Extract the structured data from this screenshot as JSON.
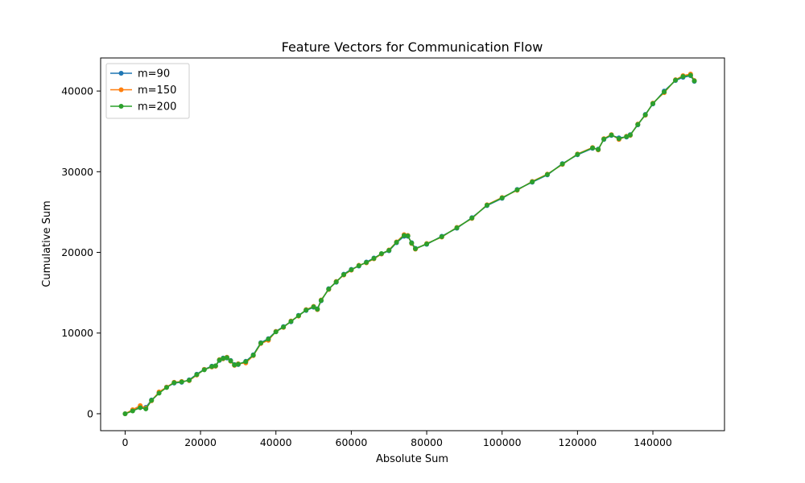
{
  "chart_data": {
    "type": "line",
    "title": "Feature Vectors for Communication Flow",
    "xlabel": "Absolute Sum",
    "ylabel": "Cumulative Sum",
    "xlim": [
      -6500,
      159000
    ],
    "ylim": [
      -2100,
      44100
    ],
    "xticks": [
      0,
      20000,
      40000,
      60000,
      80000,
      100000,
      120000,
      140000
    ],
    "yticks": [
      0,
      10000,
      20000,
      30000,
      40000
    ],
    "grid": false,
    "legend_position": "top-left",
    "series": [
      {
        "name": "m=90",
        "color": "#1f77b4",
        "marker": "circle",
        "x": [
          0,
          2000,
          4000,
          5500,
          7000,
          9000,
          11000,
          13000,
          15000,
          17000,
          19000,
          21000,
          23000,
          24000,
          25000,
          26000,
          27000,
          28000,
          29000,
          30000,
          32000,
          34000,
          36000,
          38000,
          40000,
          42000,
          44000,
          46000,
          48000,
          50000,
          51000,
          52000,
          54000,
          56000,
          58000,
          60000,
          62000,
          64000,
          66000,
          68000,
          70000,
          72000,
          74000,
          75000,
          76000,
          77000,
          80000,
          84000,
          88000,
          92000,
          96000,
          100000,
          104000,
          108000,
          112000,
          116000,
          120000,
          124000,
          125500,
          127000,
          129000,
          131000,
          133000,
          134000,
          136000,
          138000,
          140000,
          143000,
          146000,
          148000,
          150000,
          151000
        ],
        "y": [
          0,
          400,
          800,
          800,
          1700,
          2600,
          3300,
          3800,
          3900,
          4200,
          4900,
          5500,
          5900,
          5900,
          6600,
          6900,
          6900,
          6600,
          6100,
          6100,
          6500,
          7300,
          8800,
          9300,
          10200,
          10800,
          11400,
          12200,
          12800,
          13200,
          13000,
          14000,
          15500,
          16300,
          17300,
          17900,
          18300,
          18800,
          19300,
          19800,
          20200,
          21200,
          22000,
          22000,
          21200,
          20500,
          21000,
          22000,
          23000,
          24300,
          25800,
          26700,
          27800,
          28700,
          29600,
          31000,
          32100,
          32900,
          32800,
          34000,
          34500,
          34200,
          34300,
          34600,
          35800,
          37100,
          38400,
          40000,
          41300,
          41700,
          41900,
          41200
        ]
      },
      {
        "name": "m=150",
        "color": "#ff7f0e",
        "marker": "circle",
        "x": [
          0,
          2000,
          4000,
          5500,
          7000,
          9000,
          11000,
          13000,
          15000,
          17000,
          19000,
          21000,
          23000,
          24000,
          25000,
          26000,
          27000,
          28000,
          29000,
          30000,
          32000,
          34000,
          36000,
          38000,
          40000,
          42000,
          44000,
          46000,
          48000,
          50000,
          51000,
          52000,
          54000,
          56000,
          58000,
          60000,
          62000,
          64000,
          66000,
          68000,
          70000,
          72000,
          74000,
          75000,
          76000,
          77000,
          80000,
          84000,
          88000,
          92000,
          96000,
          100000,
          104000,
          108000,
          112000,
          116000,
          120000,
          124000,
          125500,
          127000,
          129000,
          131000,
          133000,
          134000,
          136000,
          138000,
          140000,
          143000,
          146000,
          148000,
          150000,
          151000
        ],
        "y": [
          0,
          500,
          1000,
          700,
          1600,
          2700,
          3300,
          3900,
          4000,
          4100,
          4800,
          5500,
          5800,
          5900,
          6700,
          6800,
          7000,
          6500,
          6000,
          6200,
          6300,
          7200,
          8700,
          9100,
          10200,
          10700,
          11500,
          12100,
          12900,
          13300,
          12900,
          14100,
          15400,
          16400,
          17200,
          17800,
          18400,
          18700,
          19200,
          19800,
          20300,
          21300,
          22200,
          22100,
          21100,
          20400,
          21100,
          21900,
          23100,
          24200,
          25900,
          26800,
          27700,
          28800,
          29700,
          30900,
          32200,
          33000,
          32700,
          34100,
          34600,
          34000,
          34400,
          34500,
          35900,
          37000,
          38500,
          39800,
          41400,
          41900,
          42100,
          41300
        ]
      },
      {
        "name": "m=200",
        "color": "#2ca02c",
        "marker": "circle",
        "x": [
          0,
          2000,
          4000,
          5500,
          7000,
          9000,
          11000,
          13000,
          15000,
          17000,
          19000,
          21000,
          23000,
          24000,
          25000,
          26000,
          27000,
          28000,
          29000,
          30000,
          32000,
          34000,
          36000,
          38000,
          40000,
          42000,
          44000,
          46000,
          48000,
          50000,
          51000,
          52000,
          54000,
          56000,
          58000,
          60000,
          62000,
          64000,
          66000,
          68000,
          70000,
          72000,
          74000,
          75000,
          76000,
          77000,
          80000,
          84000,
          88000,
          92000,
          96000,
          100000,
          104000,
          108000,
          112000,
          116000,
          120000,
          124000,
          125500,
          127000,
          129000,
          131000,
          133000,
          134000,
          136000,
          138000,
          140000,
          143000,
          146000,
          148000,
          150000,
          151000
        ],
        "y": [
          0,
          350,
          750,
          600,
          1650,
          2550,
          3250,
          3850,
          3950,
          4150,
          4850,
          5450,
          5850,
          5950,
          6650,
          6850,
          6950,
          6550,
          6050,
          6150,
          6450,
          7250,
          8750,
          9250,
          10150,
          10750,
          11450,
          12150,
          12850,
          13250,
          12950,
          14050,
          15450,
          16350,
          17250,
          17850,
          18350,
          18750,
          19250,
          19850,
          20250,
          21250,
          22100,
          22050,
          21150,
          20450,
          21050,
          21950,
          23050,
          24250,
          25850,
          26750,
          27750,
          28750,
          29650,
          30950,
          32150,
          32950,
          32750,
          34050,
          34550,
          34100,
          34350,
          34550,
          35850,
          37050,
          38450,
          39900,
          41350,
          41800,
          41950,
          41250
        ]
      }
    ]
  }
}
